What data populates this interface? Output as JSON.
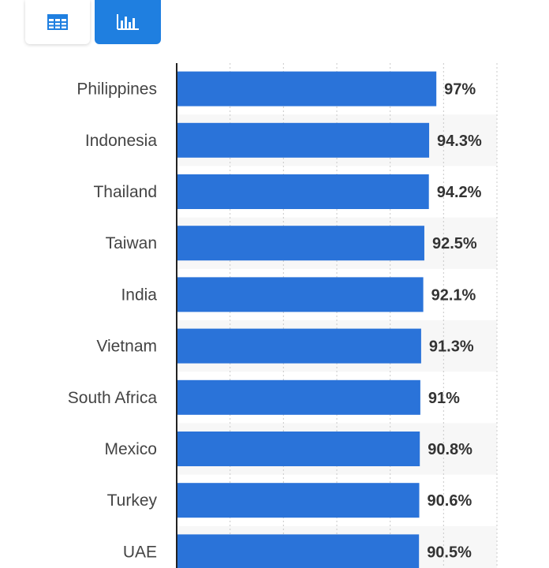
{
  "toolbar": {
    "table_view_icon": "table-icon",
    "chart_view_icon": "bar-chart-icon",
    "active": "chart"
  },
  "colors": {
    "bar": "#2a73d9",
    "active_button": "#1f7fe0",
    "band": "#f7f7f7"
  },
  "chart_data": {
    "type": "bar",
    "orientation": "horizontal",
    "categories": [
      "Philippines",
      "Indonesia",
      "Thailand",
      "Taiwan",
      "India",
      "Vietnam",
      "South Africa",
      "Mexico",
      "Turkey",
      "UAE"
    ],
    "values": [
      97,
      94.3,
      94.2,
      92.5,
      92.1,
      91.3,
      91,
      90.8,
      90.6,
      90.5
    ],
    "value_labels": [
      "97%",
      "94.3%",
      "94.2%",
      "92.5%",
      "92.1%",
      "91.3%",
      "91%",
      "90.8%",
      "90.6%",
      "90.5%"
    ],
    "xlim": [
      0,
      120
    ],
    "grid": true
  }
}
